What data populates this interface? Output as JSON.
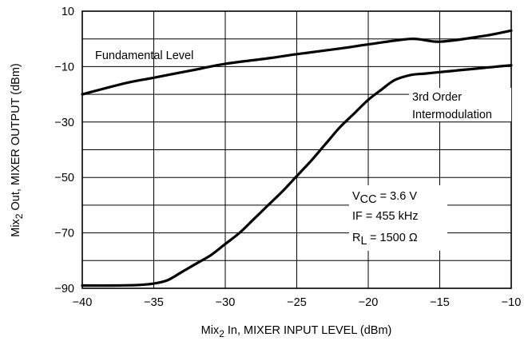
{
  "chart_data": {
    "type": "line",
    "xlabel": {
      "pre": "Mix",
      "sub": "2",
      "post": " In, MIXER INPUT LEVEL (dBm)"
    },
    "ylabel": {
      "pre": "Mix",
      "sub": "2",
      "post": " Out, MIXER OUTPUT (dBm)"
    },
    "xlim": [
      -40,
      -10
    ],
    "ylim": [
      -90,
      10
    ],
    "x_ticks": [
      -40,
      -35,
      -30,
      -25,
      -20,
      -15,
      -10
    ],
    "x_tick_labels": [
      "−40",
      "−35",
      "−30",
      "−25",
      "−20",
      "−15",
      "−10"
    ],
    "y_ticks": [
      10,
      -10,
      -30,
      -50,
      -70,
      -90
    ],
    "y_tick_labels": [
      "10",
      "−10",
      "−30",
      "−50",
      "−70",
      "−90"
    ],
    "grid": true,
    "series": [
      {
        "name": "Fundamental Level",
        "x": [
          -40,
          -37,
          -35,
          -32,
          -30,
          -27,
          -25,
          -22,
          -20,
          -17,
          -15,
          -12,
          -10
        ],
        "y": [
          -20,
          -16,
          -14,
          -11,
          -9,
          -7,
          -5.5,
          -3.5,
          -2,
          0,
          -1,
          1,
          3
        ]
      },
      {
        "name": "3rd Order Intermodulation",
        "x": [
          -40,
          -38,
          -36,
          -35,
          -34,
          -33,
          -32,
          -31,
          -30,
          -29,
          -28,
          -27,
          -26,
          -25,
          -24,
          -23,
          -22,
          -21,
          -20,
          -19,
          -18.5,
          -18,
          -17,
          -16,
          -15,
          -14,
          -13,
          -12,
          -11,
          -10
        ],
        "y": [
          -89,
          -89,
          -88.8,
          -88.3,
          -87,
          -84,
          -81,
          -78,
          -74,
          -70,
          -65,
          -60,
          -55,
          -49.5,
          -44,
          -38,
          -32,
          -27,
          -22,
          -18,
          -16,
          -14.5,
          -13,
          -12.5,
          -12,
          -11.5,
          -11,
          -10.5,
          -10,
          -9.5
        ]
      }
    ],
    "annotations": {
      "fundamental": "Fundamental Level",
      "imd_line1": "3rd Order",
      "imd_line2": "Intermodulation",
      "vcc": {
        "pre": "V",
        "sub": "CC",
        "post": " = 3.6 V"
      },
      "if": "IF = 455 kHz",
      "rl": {
        "pre": "R",
        "sub": "L",
        "post": " = 1500 Ω"
      }
    }
  }
}
